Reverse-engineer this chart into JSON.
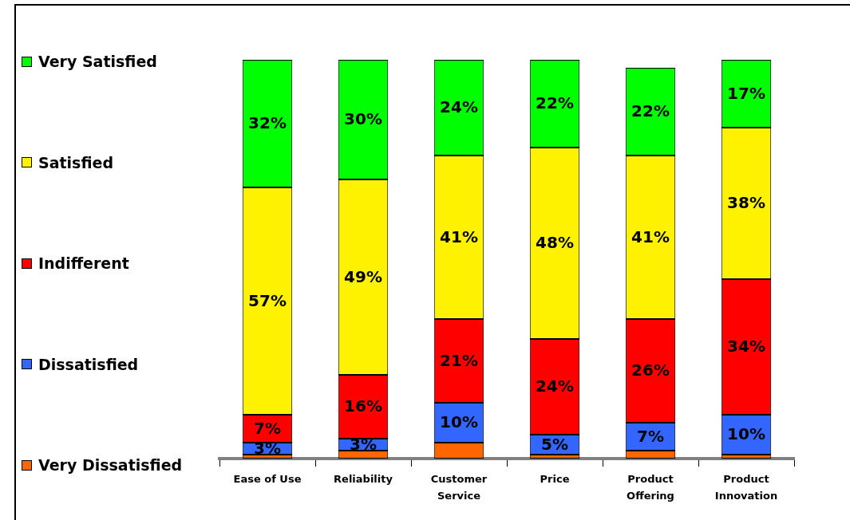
{
  "chart_data": {
    "type": "bar",
    "stacked": true,
    "legend": "left",
    "categories": [
      "Ease of Use",
      "Reliability",
      "Customer Service",
      "Price",
      "Product Offering",
      "Product Innovation"
    ],
    "series": [
      {
        "name": "Very Dissatisfied",
        "color": "#ff6600",
        "values": [
          1,
          2,
          4,
          1,
          2,
          1
        ]
      },
      {
        "name": "Dissatisfied",
        "color": "#3366ff",
        "values": [
          3,
          3,
          10,
          5,
          7,
          10
        ],
        "value_labels": [
          "3%",
          "3%",
          "10%",
          "5%",
          "7%",
          "10%"
        ]
      },
      {
        "name": "Indifferent",
        "color": "#ff0000",
        "values": [
          7,
          16,
          21,
          24,
          26,
          34
        ],
        "value_labels": [
          "7%",
          "16%",
          "21%",
          "24%",
          "26%",
          "34%"
        ]
      },
      {
        "name": "Satisfied",
        "color": "#fff200",
        "values": [
          57,
          49,
          41,
          48,
          41,
          38
        ],
        "value_labels": [
          "57%",
          "49%",
          "41%",
          "48%",
          "41%",
          "38%"
        ]
      },
      {
        "name": "Very Satisfied",
        "color": "#00ff00",
        "values": [
          32,
          30,
          24,
          22,
          22,
          17
        ],
        "value_labels": [
          "32%",
          "30%",
          "24%",
          "22%",
          "22%",
          "17%"
        ]
      }
    ]
  }
}
